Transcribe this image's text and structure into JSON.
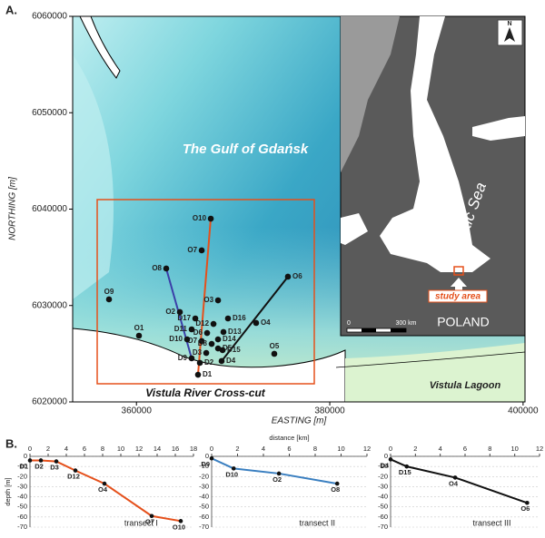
{
  "panel_a": {
    "label": "A.",
    "xlabel": "EASTING [m]",
    "ylabel": "NORTHING [m]",
    "xlim": [
      353400,
      400200
    ],
    "ylim": [
      6020000,
      6060000
    ],
    "xticks": [
      360000,
      380000,
      400000
    ],
    "yticks": [
      6020000,
      6030000,
      6040000,
      6050000,
      6060000
    ],
    "gulf_label": "The Gulf of Gdańsk",
    "box_label": "Vistula River Cross-cut",
    "lagoon_label": "Vistula Lagoon",
    "stations": [
      {
        "name": "D1",
        "x": 366370,
        "y": 6022820
      },
      {
        "name": "D2",
        "x": 366560,
        "y": 6024050
      },
      {
        "name": "D3",
        "x": 367220,
        "y": 6025080
      },
      {
        "name": "D4",
        "x": 368810,
        "y": 6024240
      },
      {
        "name": "D5",
        "x": 368440,
        "y": 6025550
      },
      {
        "name": "D6",
        "x": 367310,
        "y": 6027150
      },
      {
        "name": "D7",
        "x": 366750,
        "y": 6026310
      },
      {
        "name": "D8",
        "x": 367780,
        "y": 6026020
      },
      {
        "name": "D9",
        "x": 365710,
        "y": 6024520
      },
      {
        "name": "D10",
        "x": 365240,
        "y": 6026490
      },
      {
        "name": "D11",
        "x": 365710,
        "y": 6027530
      },
      {
        "name": "D12",
        "x": 367970,
        "y": 6028090
      },
      {
        "name": "D13",
        "x": 369000,
        "y": 6027250
      },
      {
        "name": "D14",
        "x": 368440,
        "y": 6026490
      },
      {
        "name": "D15",
        "x": 368910,
        "y": 6025370
      },
      {
        "name": "D16",
        "x": 369470,
        "y": 6028660
      },
      {
        "name": "D17",
        "x": 366090,
        "y": 6028660
      },
      {
        "name": "O1",
        "x": 360260,
        "y": 6026870
      },
      {
        "name": "O2",
        "x": 364490,
        "y": 6029320
      },
      {
        "name": "O3",
        "x": 368440,
        "y": 6030540
      },
      {
        "name": "O4",
        "x": 372380,
        "y": 6028190
      },
      {
        "name": "O5",
        "x": 374260,
        "y": 6024990
      },
      {
        "name": "O6",
        "x": 375670,
        "y": 6032990
      },
      {
        "name": "O7",
        "x": 366750,
        "y": 6035720
      },
      {
        "name": "O8",
        "x": 363080,
        "y": 6033840
      },
      {
        "name": "O9",
        "x": 357160,
        "y": 6030640
      },
      {
        "name": "O10",
        "x": 367690,
        "y": 6039010
      }
    ],
    "inset": {
      "north": "N",
      "sea": "Baltic Sea",
      "study_area": "study area",
      "country": "POLAND",
      "scale_start": "0",
      "scale_end": "300 km"
    }
  },
  "panel_b_label": "B.",
  "chart_data": [
    {
      "type": "line",
      "title": "transect I",
      "ylabel": "depth [m]",
      "color": "#e5501b",
      "x": [
        0,
        1.2,
        2.9,
        5,
        8.2,
        13.4,
        16.6
      ],
      "values": [
        -4,
        -4,
        -5,
        -14,
        -27,
        -59,
        -64
      ],
      "point_labels": [
        "D1",
        "D2",
        "D3",
        "D12",
        "O4",
        "O7",
        "O10"
      ],
      "xlim": [
        0,
        18
      ],
      "xticks": [
        0,
        2,
        4,
        6,
        8,
        10,
        12,
        14,
        16,
        18
      ],
      "ylim": [
        -70,
        0
      ],
      "yticks": [
        0,
        -10,
        -20,
        -30,
        -40,
        -50,
        -60,
        -70
      ],
      "grid": true
    },
    {
      "type": "line",
      "title": "transect II",
      "xlabel": "distance [km]",
      "color": "#3a7fc0",
      "x": [
        0,
        1.7,
        5.2,
        9.7
      ],
      "values": [
        -2,
        -12,
        -17,
        -27
      ],
      "point_labels": [
        "D9",
        "D10",
        "O2",
        "O8"
      ],
      "xlim": [
        0,
        12
      ],
      "xticks": [
        0,
        2,
        4,
        6,
        8,
        10,
        12
      ],
      "ylim": [
        -70,
        0
      ],
      "yticks": [
        0,
        -10,
        -20,
        -30,
        -40,
        -50,
        -60,
        -70
      ],
      "grid": true
    },
    {
      "type": "line",
      "title": "transect III",
      "color": "#111111",
      "x": [
        0,
        1.3,
        5.2,
        11
      ],
      "values": [
        -3,
        -10,
        -21,
        -46
      ],
      "point_labels": [
        "D4",
        "D15",
        "O4",
        "O6"
      ],
      "xlim": [
        0,
        12
      ],
      "xticks": [
        0,
        2,
        4,
        6,
        8,
        10,
        12
      ],
      "ylim": [
        -70,
        0
      ],
      "yticks": [
        0,
        -10,
        -20,
        -30,
        -40,
        -50,
        -60,
        -70
      ],
      "grid": true
    }
  ]
}
